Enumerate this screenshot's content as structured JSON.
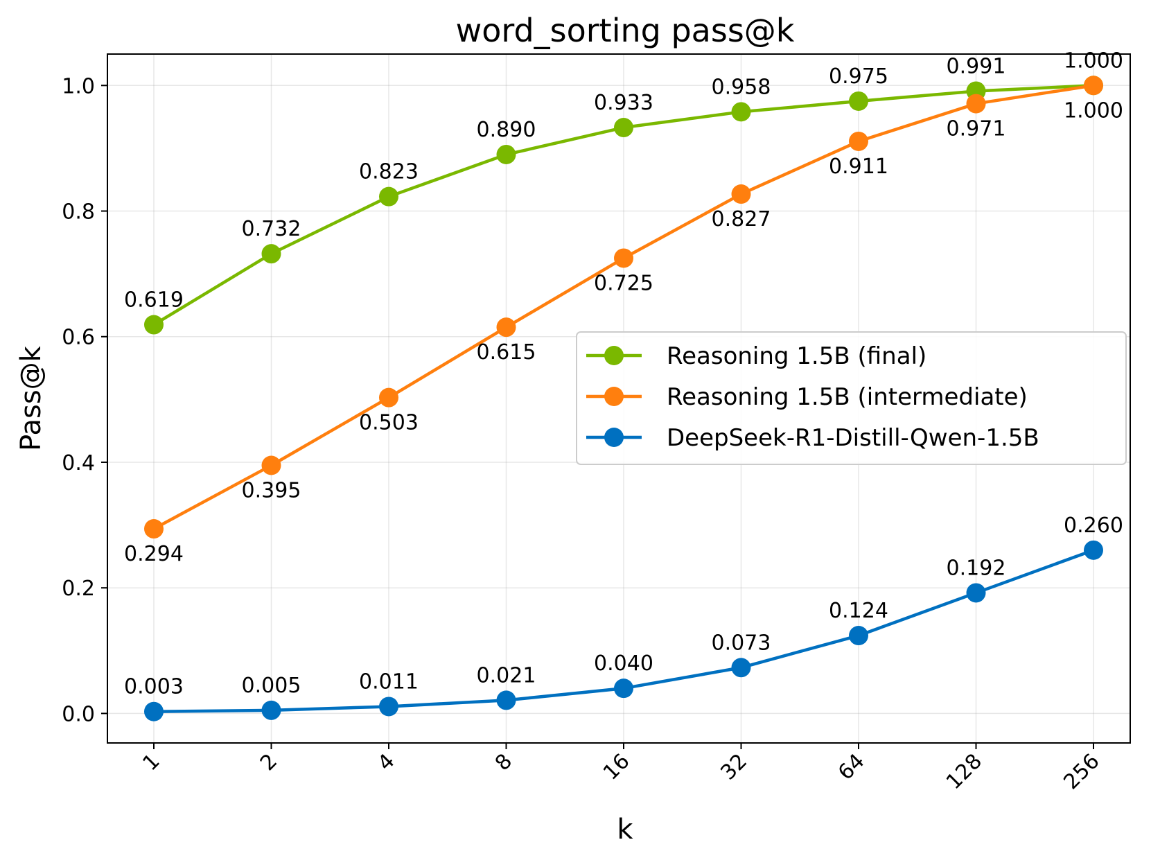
{
  "chart_data": {
    "type": "line",
    "title": "word_sorting pass@k",
    "xlabel": "k",
    "ylabel": "Pass@k",
    "x": [
      1,
      2,
      4,
      8,
      16,
      32,
      64,
      128,
      256
    ],
    "x_tick_labels": [
      "1",
      "2",
      "4",
      "8",
      "16",
      "32",
      "64",
      "128",
      "256"
    ],
    "x_scale": "log2",
    "ylim": [
      -0.047,
      1.05
    ],
    "y_ticks": [
      0.0,
      0.2,
      0.4,
      0.6,
      0.8,
      1.0
    ],
    "y_tick_labels": [
      "0.0",
      "0.2",
      "0.4",
      "0.6",
      "0.8",
      "1.0"
    ],
    "grid": true,
    "legend_position": "center-right",
    "series": [
      {
        "name": "Reasoning 1.5B (final)",
        "color": "#7ab800",
        "label_position": "above",
        "values": [
          0.619,
          0.732,
          0.823,
          0.89,
          0.933,
          0.958,
          0.975,
          0.991,
          1.0
        ],
        "labels": [
          "0.619",
          "0.732",
          "0.823",
          "0.890",
          "0.933",
          "0.958",
          "0.975",
          "0.991",
          "1.000"
        ]
      },
      {
        "name": "Reasoning 1.5B (intermediate)",
        "color": "#ff7f0e",
        "label_position": "below",
        "values": [
          0.294,
          0.395,
          0.503,
          0.615,
          0.725,
          0.827,
          0.911,
          0.971,
          1.0
        ],
        "labels": [
          "0.294",
          "0.395",
          "0.503",
          "0.615",
          "0.725",
          "0.827",
          "0.911",
          "0.971",
          "1.000"
        ]
      },
      {
        "name": "DeepSeek-R1-Distill-Qwen-1.5B",
        "color": "#0070c0",
        "label_position": "above",
        "values": [
          0.003,
          0.005,
          0.011,
          0.021,
          0.04,
          0.073,
          0.124,
          0.192,
          0.26
        ],
        "labels": [
          "0.003",
          "0.005",
          "0.011",
          "0.021",
          "0.040",
          "0.073",
          "0.124",
          "0.192",
          "0.260"
        ]
      }
    ]
  }
}
